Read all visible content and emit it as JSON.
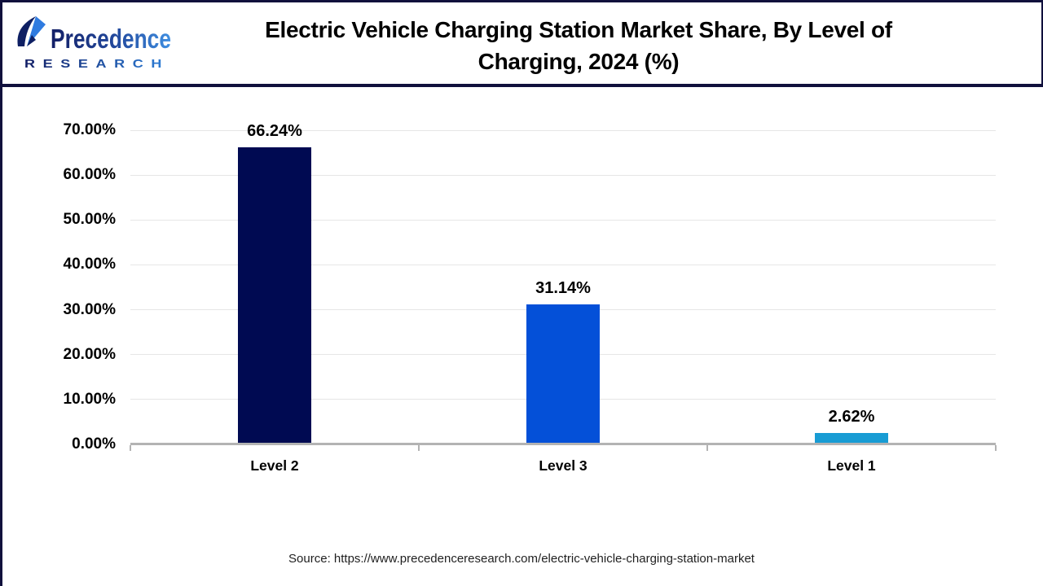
{
  "header": {
    "logo": {
      "brand_top": "Precedence",
      "brand_bottom": "RESEARCH"
    },
    "title_line1": "Electric Vehicle Charging Station Market Share, By Level of",
    "title_line2": "Charging, 2024 (%)"
  },
  "chart_data": {
    "type": "bar",
    "title": "Electric Vehicle Charging Station Market Share, By Level of Charging, 2024 (%)",
    "categories": [
      "Level 2",
      "Level 3",
      "Level 1"
    ],
    "values": [
      66.24,
      31.14,
      2.62
    ],
    "value_labels": [
      "66.24%",
      "31.14%",
      "2.62%"
    ],
    "bar_colors": [
      "#000a52",
      "#0450d8",
      "#189cd4"
    ],
    "xlabel": "",
    "ylabel": "",
    "ylim": [
      0,
      70
    ],
    "ytick_step": 10,
    "ytick_labels": [
      "0.00%",
      "10.00%",
      "20.00%",
      "30.00%",
      "40.00%",
      "50.00%",
      "60.00%",
      "70.00%"
    ],
    "grid": true,
    "legend": false
  },
  "footer": {
    "source": "Source: https://www.precedenceresearch.com/electric-vehicle-charging-station-market"
  },
  "colors": {
    "accent_navy": "#10103c",
    "gridline": "#e6e6e6",
    "axis": "#b3b3b3",
    "logo_navy": "#131f66",
    "logo_blue": "#3f8fe2"
  }
}
